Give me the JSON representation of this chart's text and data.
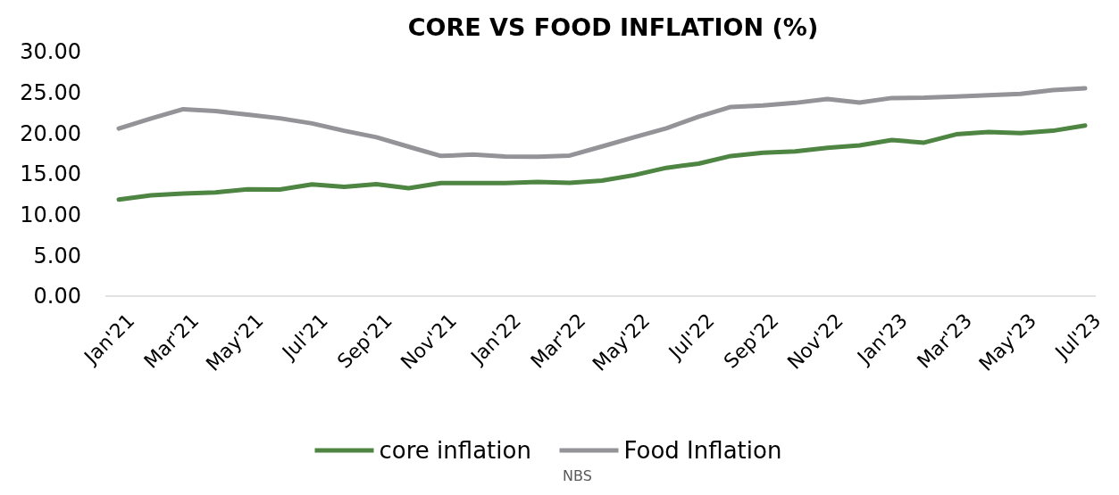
{
  "chart_data": {
    "type": "line",
    "title": "CORE VS FOOD INFLATION (%)",
    "categories": [
      "Jan'21",
      null,
      "Mar'21",
      null,
      "May'21",
      null,
      "Jul'21",
      null,
      "Sep'21",
      null,
      "Nov'21",
      null,
      "Jan'22",
      null,
      "Mar'22",
      null,
      "May'22",
      null,
      "Jul'22",
      null,
      "Sep'22",
      null,
      "Nov'22",
      null,
      "Jan'23",
      null,
      "Mar'23",
      null,
      "May'23",
      null,
      "Jul'23"
    ],
    "series": [
      {
        "name": "core inflation",
        "color": "#4e8542",
        "values": [
          11.85,
          12.38,
          12.6,
          12.74,
          13.1,
          13.09,
          13.72,
          13.41,
          13.74,
          13.24,
          13.87,
          13.87,
          13.87,
          14.01,
          13.91,
          14.18,
          14.85,
          15.75,
          16.26,
          17.2,
          17.6,
          17.76,
          18.2,
          18.5,
          19.16,
          18.84,
          19.86,
          20.14,
          20.0,
          20.3,
          20.94
        ]
      },
      {
        "name": "Food Inflation",
        "color": "#939398",
        "values": [
          20.57,
          21.79,
          22.95,
          22.72,
          22.28,
          21.83,
          21.2,
          20.3,
          19.5,
          18.34,
          17.21,
          17.37,
          17.13,
          17.11,
          17.25,
          18.37,
          19.5,
          20.6,
          22.02,
          23.22,
          23.4,
          23.72,
          24.2,
          23.75,
          24.32,
          24.35,
          24.5,
          24.65,
          24.82,
          25.3,
          25.5
        ]
      }
    ],
    "ylim": [
      0,
      30
    ],
    "yticks": [
      {
        "value": 0,
        "label": "0.00"
      },
      {
        "value": 5,
        "label": "5.00"
      },
      {
        "value": 10,
        "label": "10.00"
      },
      {
        "value": 15,
        "label": "15.00"
      },
      {
        "value": 20,
        "label": "20.00"
      },
      {
        "value": 25,
        "label": "25.00"
      },
      {
        "value": 30,
        "label": "30.00"
      }
    ],
    "grid": false,
    "legend": "bottom",
    "marker": "none",
    "line_style": "solid",
    "annotations": [
      "NBS"
    ]
  }
}
